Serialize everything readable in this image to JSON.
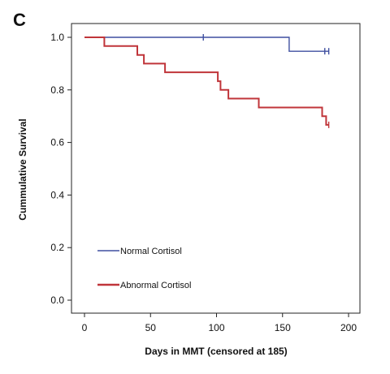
{
  "chart_data": {
    "type": "line",
    "panel_label": "C",
    "title": "",
    "xlabel": "Days in MMT (censored at 185)",
    "ylabel": "Cummulative Survival",
    "xlim": [
      0,
      200
    ],
    "ylim": [
      0.0,
      1.0
    ],
    "x_ticks": [
      0,
      50,
      100,
      150,
      200
    ],
    "y_ticks": [
      0.0,
      0.2,
      0.4,
      0.6,
      0.8,
      1.0
    ],
    "y_tick_labels": [
      "0.0",
      "0.2",
      "0.4",
      "0.6",
      "0.8",
      "1.0"
    ],
    "grid": false,
    "legend_position": "bottom-left",
    "series": [
      {
        "name": "Normal Cortisol",
        "color": "#3f4fa0",
        "line_style": "step",
        "points": [
          [
            0,
            1.0
          ],
          [
            155,
            1.0
          ],
          [
            155,
            0.947
          ],
          [
            185,
            0.947
          ]
        ],
        "censored": [
          [
            90,
            1.0
          ],
          [
            182,
            0.947
          ],
          [
            185,
            0.947
          ]
        ]
      },
      {
        "name": "Abnormal Cortisol",
        "color": "#c0353a",
        "line_style": "step",
        "points": [
          [
            0,
            1.0
          ],
          [
            15,
            1.0
          ],
          [
            15,
            0.967
          ],
          [
            40,
            0.967
          ],
          [
            40,
            0.933
          ],
          [
            45,
            0.933
          ],
          [
            45,
            0.9
          ],
          [
            61,
            0.9
          ],
          [
            61,
            0.867
          ],
          [
            101,
            0.867
          ],
          [
            101,
            0.833
          ],
          [
            103,
            0.833
          ],
          [
            103,
            0.8
          ],
          [
            109,
            0.8
          ],
          [
            109,
            0.767
          ],
          [
            132,
            0.767
          ],
          [
            132,
            0.733
          ],
          [
            180,
            0.733
          ],
          [
            180,
            0.7
          ],
          [
            183,
            0.7
          ],
          [
            183,
            0.667
          ],
          [
            185,
            0.667
          ]
        ],
        "censored": [
          [
            185,
            0.667
          ]
        ]
      }
    ]
  }
}
